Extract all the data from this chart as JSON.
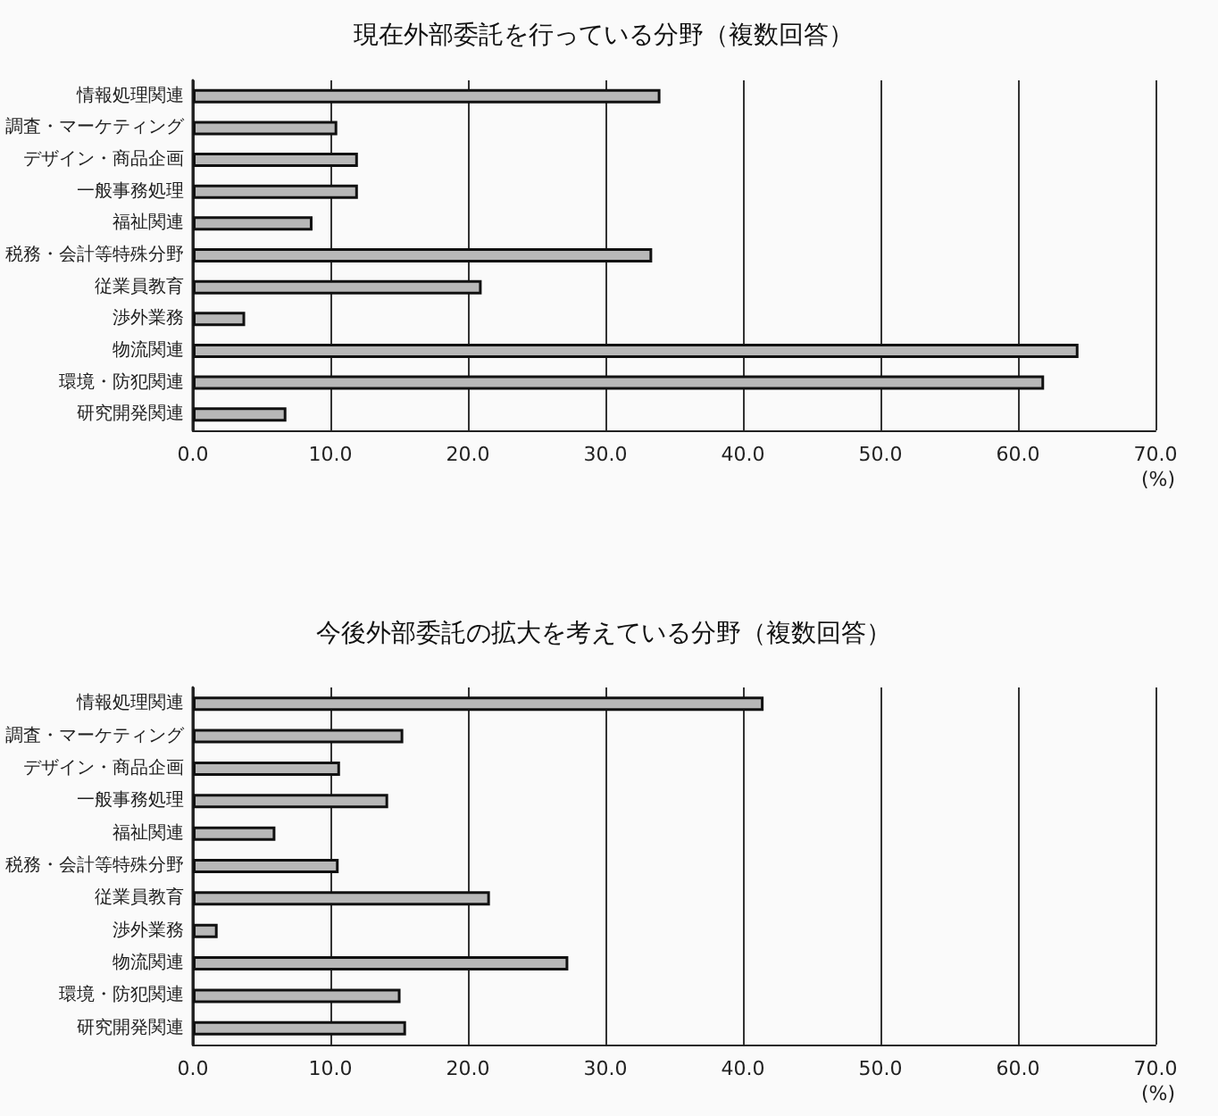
{
  "chart_data": [
    {
      "type": "bar",
      "orientation": "horizontal",
      "title": "現在外部委託を行っている分野（複数回答）",
      "xlabel": "(%)",
      "categories": [
        "情報処理関連",
        "調査・マーケティング",
        "デザイン・商品企画",
        "一般事務処理",
        "福祉関連",
        "税務・会計等特殊分野",
        "従業員教育",
        "渉外業務",
        "物流関連",
        "環境・防犯関連",
        "研究開発関連"
      ],
      "values": [
        34.0,
        10.5,
        12.0,
        12.0,
        8.7,
        33.4,
        21.0,
        3.8,
        64.4,
        61.9,
        6.8
      ],
      "color": "#b8b8b8",
      "xlim": [
        0,
        70
      ],
      "xticks": [
        {
          "value": 0,
          "label": "0.0"
        },
        {
          "value": 10,
          "label": "10.0"
        },
        {
          "value": 20,
          "label": "20.0"
        },
        {
          "value": 30,
          "label": "30.0"
        },
        {
          "value": 40,
          "label": "40.0"
        },
        {
          "value": 50,
          "label": "50.0"
        },
        {
          "value": 60,
          "label": "60.0"
        },
        {
          "value": 70,
          "label": "70.0"
        }
      ],
      "grid": "x"
    },
    {
      "type": "bar",
      "orientation": "horizontal",
      "title": "今後外部委託の拡大を考えている分野（複数回答）",
      "xlabel": "(%)",
      "categories": [
        "情報処理関連",
        "調査・マーケティング",
        "デザイン・商品企画",
        "一般事務処理",
        "福祉関連",
        "税務・会計等特殊分野",
        "従業員教育",
        "渉外業務",
        "物流関連",
        "環境・防犯関連",
        "研究開発関連"
      ],
      "values": [
        41.5,
        15.3,
        10.7,
        14.2,
        6.0,
        10.6,
        21.6,
        1.8,
        27.3,
        15.1,
        15.5
      ],
      "color": "#b8b8b8",
      "xlim": [
        0,
        70
      ],
      "xticks": [
        {
          "value": 0,
          "label": "0.0"
        },
        {
          "value": 10,
          "label": "10.0"
        },
        {
          "value": 20,
          "label": "20.0"
        },
        {
          "value": 30,
          "label": "30.0"
        },
        {
          "value": 40,
          "label": "40.0"
        },
        {
          "value": 50,
          "label": "50.0"
        },
        {
          "value": 60,
          "label": "60.0"
        },
        {
          "value": 70,
          "label": "70.0"
        }
      ],
      "grid": "x"
    }
  ]
}
